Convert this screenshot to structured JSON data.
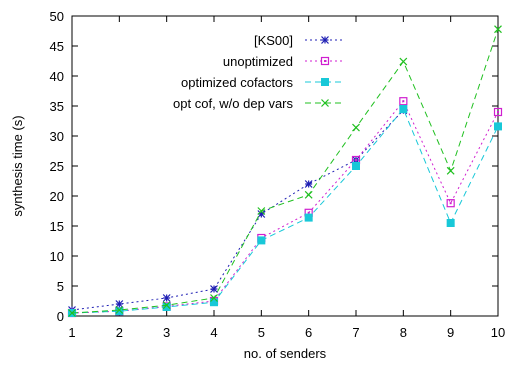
{
  "chart_data": {
    "type": "line",
    "title": "",
    "xlabel": "no. of senders",
    "ylabel": "synthesis time (s)",
    "xlim": [
      1,
      10
    ],
    "ylim": [
      0,
      50
    ],
    "x": [
      1,
      2,
      3,
      4,
      5,
      6,
      7,
      8,
      9,
      10
    ],
    "x_ticks": [
      "1",
      "2",
      "3",
      "4",
      "5",
      "6",
      "7",
      "8",
      "9",
      "10"
    ],
    "y_ticks": [
      "0",
      "5",
      "10",
      "15",
      "20",
      "25",
      "30",
      "35",
      "40",
      "45",
      "50"
    ],
    "legend_position": "top-left",
    "grid": false,
    "series": [
      {
        "name": "[KS00]",
        "color": "#1f1fb4",
        "marker": "asterisk",
        "line_style": "dotted",
        "values": [
          1.0,
          2.0,
          3.0,
          4.5,
          17.0,
          22.0,
          26.0,
          34.3,
          null,
          null
        ]
      },
      {
        "name": "unoptimized",
        "color": "#d01fd0",
        "marker": "square-open",
        "line_style": "dotted",
        "values": [
          0.5,
          0.8,
          1.6,
          2.5,
          13.0,
          17.2,
          26.0,
          35.8,
          18.8,
          34.0
        ]
      },
      {
        "name": "optimized cofactors",
        "color": "#18c8d8",
        "marker": "square-filled",
        "line_style": "dashed",
        "values": [
          0.5,
          0.8,
          1.5,
          2.3,
          12.6,
          16.4,
          25.0,
          34.5,
          15.5,
          31.6
        ]
      },
      {
        "name": "opt cof, w/o dep vars",
        "color": "#20c020",
        "marker": "x",
        "line_style": "dashed",
        "values": [
          0.5,
          1.0,
          1.8,
          3.0,
          17.5,
          20.2,
          31.4,
          42.4,
          24.2,
          47.8
        ]
      }
    ]
  }
}
